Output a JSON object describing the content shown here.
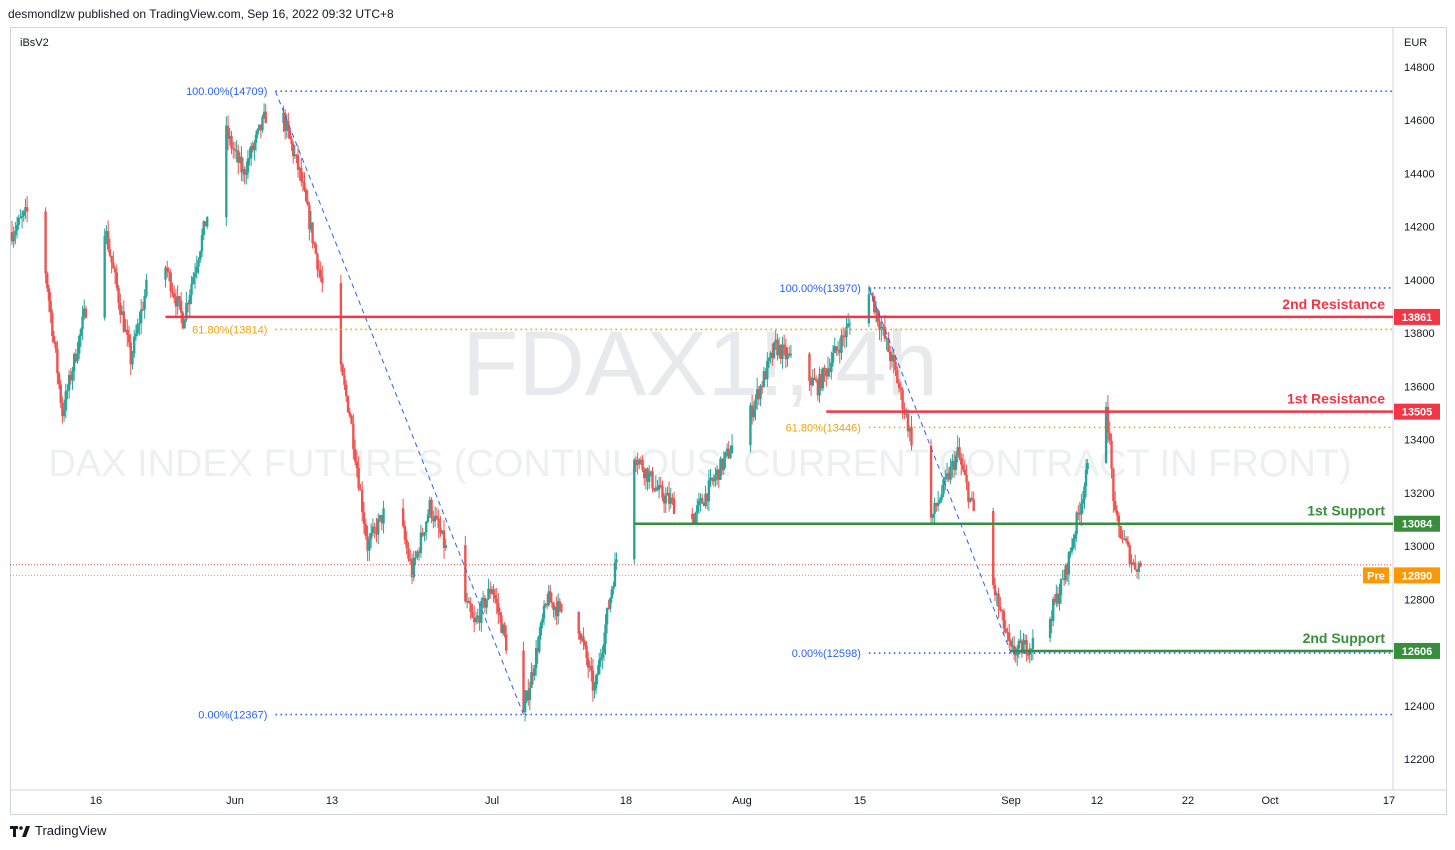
{
  "header": {
    "published": "desmondlzw published on TradingView.com, Sep 16, 2022 09:32 UTC+8"
  },
  "footer": {
    "brand": "TradingView",
    "logo": "tradingview-logo-icon"
  },
  "chart_data": {
    "type": "candlestick",
    "indicator_label": "iBsV2",
    "currency": "EUR",
    "watermark_symbol": "FDAX1!, 4h",
    "watermark_description": "DAX INDEX FUTURES (CONTINUOUS: CURRENT CONTRACT IN FRONT)",
    "ylim": [
      12150,
      14850
    ],
    "y_ticks": [
      12200,
      12400,
      12600,
      12800,
      13000,
      13200,
      13400,
      13600,
      13800,
      14000,
      14200,
      14400,
      14600,
      14800
    ],
    "x_ticks": [
      "16",
      "Jun",
      "13",
      "Jul",
      "18",
      "Aug",
      "15",
      "Sep",
      "12",
      "22",
      "Oct",
      "17"
    ],
    "colors": {
      "up": "#26a69a",
      "down": "#ef5350",
      "resistance": "#f23645",
      "support": "#388e3c",
      "fib_blue": "#2962ff",
      "fib_orange": "#f0a30a",
      "pre": "#ff9800",
      "last_price": "#ef5350"
    },
    "swing_points": [
      {
        "date": "May 9",
        "price": 14300
      },
      {
        "date": "May 12",
        "price": 13500
      },
      {
        "date": "May 17",
        "price": 14200
      },
      {
        "date": "May 20",
        "price": 13700
      },
      {
        "date": "May 23",
        "price": 14150
      },
      {
        "date": "May 26",
        "price": 13850
      },
      {
        "date": "May 31",
        "price": 14550
      },
      {
        "date": "Jun 2",
        "price": 14400
      },
      {
        "date": "Jun 6",
        "price": 14709
      },
      {
        "date": "Jun 9",
        "price": 14400
      },
      {
        "date": "Jun 13",
        "price": 13800
      },
      {
        "date": "Jun 15",
        "price": 13500
      },
      {
        "date": "Jun 17",
        "price": 13000
      },
      {
        "date": "Jun 20",
        "price": 13200
      },
      {
        "date": "Jun 22",
        "price": 12900
      },
      {
        "date": "Jun 24",
        "price": 13150
      },
      {
        "date": "Jun 29",
        "price": 12700
      },
      {
        "date": "Jul 1",
        "price": 12850
      },
      {
        "date": "Jul 5",
        "price": 12367
      },
      {
        "date": "Jul 8",
        "price": 12800
      },
      {
        "date": "Jul 12",
        "price": 12700
      },
      {
        "date": "Jul 14",
        "price": 12450
      },
      {
        "date": "Jul 19",
        "price": 13350
      },
      {
        "date": "Jul 22",
        "price": 13200
      },
      {
        "date": "Jul 26",
        "price": 13100
      },
      {
        "date": "Aug 2",
        "price": 13500
      },
      {
        "date": "Aug 5",
        "price": 13750
      },
      {
        "date": "Aug 10",
        "price": 13600
      },
      {
        "date": "Aug 16",
        "price": 13970
      },
      {
        "date": "Aug 19",
        "price": 13650
      },
      {
        "date": "Aug 23",
        "price": 13100
      },
      {
        "date": "Aug 26",
        "price": 13350
      },
      {
        "date": "Aug 30",
        "price": 12850
      },
      {
        "date": "Sep 1",
        "price": 12598
      },
      {
        "date": "Sep 5",
        "price": 12650
      },
      {
        "date": "Sep 8",
        "price": 12900
      },
      {
        "date": "Sep 12",
        "price": 13450
      },
      {
        "date": "Sep 13",
        "price": 13550
      },
      {
        "date": "Sep 14",
        "price": 13100
      },
      {
        "date": "Sep 16",
        "price": 12930
      }
    ],
    "horizontal_levels": [
      {
        "name": "2nd Resistance",
        "price": 13861,
        "kind": "resistance"
      },
      {
        "name": "1st Resistance",
        "price": 13505,
        "kind": "resistance"
      },
      {
        "name": "1st Support",
        "price": 13084,
        "kind": "support"
      },
      {
        "name": "2nd Support",
        "price": 12606,
        "kind": "support"
      }
    ],
    "fib_labels": [
      {
        "label": "100.00%(14709)",
        "price": 14709,
        "color": "fib_blue"
      },
      {
        "label": "61.80%(13814)",
        "price": 13814,
        "color": "fib_orange"
      },
      {
        "label": "0.00%(12367)",
        "price": 12367,
        "color": "fib_blue"
      },
      {
        "label": "100.00%(13970)",
        "price": 13970,
        "color": "fib_blue"
      },
      {
        "label": "61.80%(13446)",
        "price": 13446,
        "color": "fib_orange"
      },
      {
        "label": "0.00%(12598)",
        "price": 12598,
        "color": "fib_blue"
      }
    ],
    "pre_market": {
      "label": "Pre",
      "price": 12890
    },
    "price_tags": [
      13861,
      13505,
      13084,
      12890,
      12606
    ]
  }
}
